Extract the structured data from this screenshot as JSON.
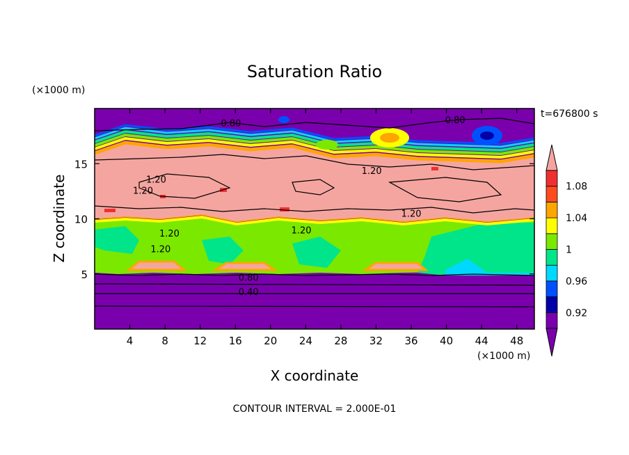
{
  "chart_data": {
    "type": "heatmap",
    "title": "Saturation Ratio",
    "xlabel": "X coordinate",
    "ylabel": "Z coordinate",
    "x_unit": "(×1000 m)",
    "y_unit": "(×1000 m)",
    "time_label": "t=676800 s",
    "footer": "CONTOUR INTERVAL = 2.000E-01",
    "xlim": [
      0,
      50
    ],
    "ylim": [
      0,
      20
    ],
    "x_ticks": [
      4,
      8,
      12,
      16,
      20,
      24,
      28,
      32,
      36,
      40,
      44,
      48
    ],
    "y_ticks": [
      5,
      10,
      15
    ],
    "colorbar": {
      "labels": [
        "1.08",
        "1.04",
        "1",
        "0.96",
        "0.92"
      ],
      "bands": [
        {
          "min": 0.9,
          "max": 0.92,
          "color": "#7a00ad"
        },
        {
          "min": 0.92,
          "max": 0.94,
          "color": "#0000a8"
        },
        {
          "min": 0.94,
          "max": 0.96,
          "color": "#0050ff"
        },
        {
          "min": 0.96,
          "max": 0.98,
          "color": "#00d8ff"
        },
        {
          "min": 0.98,
          "max": 1.0,
          "color": "#00e58a"
        },
        {
          "min": 1.0,
          "max": 1.02,
          "color": "#7be800"
        },
        {
          "min": 1.02,
          "max": 1.04,
          "color": "#ffff00"
        },
        {
          "min": 1.04,
          "max": 1.06,
          "color": "#ffa500"
        },
        {
          "min": 1.06,
          "max": 1.08,
          "color": "#ff4c1f"
        },
        {
          "min": 1.08,
          "max": 1.1,
          "color": "#f03030"
        }
      ],
      "under_color": "#7a00ad",
      "over_color": "#f5a5a0"
    },
    "contour_labels": [
      {
        "text": "0.80",
        "x": 15.5,
        "z": 18.7
      },
      {
        "text": "0.80",
        "x": 41.0,
        "z": 19.0
      },
      {
        "text": "1.20",
        "x": 31.5,
        "z": 14.4
      },
      {
        "text": "1.20",
        "x": 7.0,
        "z": 13.6
      },
      {
        "text": "1.20",
        "x": 5.5,
        "z": 12.6
      },
      {
        "text": "1.20",
        "x": 36.0,
        "z": 10.5
      },
      {
        "text": "1.20",
        "x": 23.5,
        "z": 9.0
      },
      {
        "text": "1.20",
        "x": 8.5,
        "z": 8.7
      },
      {
        "text": "1.20",
        "x": 7.5,
        "z": 7.3
      },
      {
        "text": "0.80",
        "x": 17.5,
        "z": 4.7
      },
      {
        "text": "0.40",
        "x": 17.5,
        "z": 3.4
      }
    ]
  }
}
